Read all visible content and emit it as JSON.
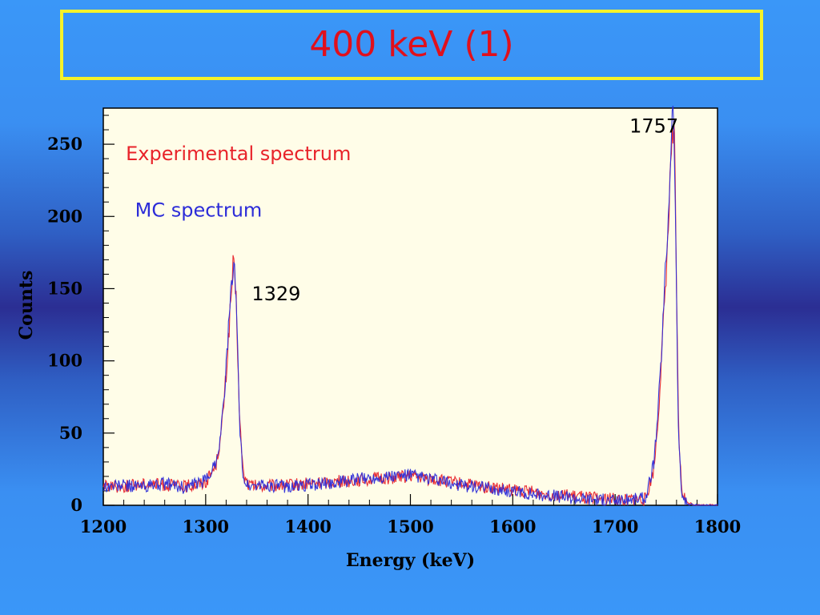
{
  "slide": {
    "title": "400 keV (1)",
    "colors": {
      "title": "#e0101c",
      "title_border": "#f5f22a",
      "plot_bg": "#fffde8"
    }
  },
  "chart_data": {
    "type": "line",
    "xlabel": "Energy (keV)",
    "ylabel": "Counts",
    "xlim": [
      1200,
      1800
    ],
    "ylim": [
      0,
      275
    ],
    "xticks": [
      1200,
      1300,
      1400,
      1500,
      1600,
      1700,
      1800
    ],
    "yticks": [
      0,
      50,
      100,
      150,
      200,
      250
    ],
    "grid": false,
    "series": [
      {
        "name": "Experimental spectrum",
        "color": "#e8232a",
        "x": [
          1200,
          1220,
          1240,
          1260,
          1280,
          1300,
          1310,
          1315,
          1320,
          1324,
          1327,
          1330,
          1333,
          1337,
          1342,
          1350,
          1380,
          1420,
          1460,
          1500,
          1540,
          1580,
          1620,
          1660,
          1700,
          1730,
          1738,
          1742,
          1746,
          1749,
          1752,
          1754,
          1756,
          1758,
          1760,
          1762,
          1765,
          1770,
          1780,
          1800
        ],
        "y": [
          14,
          13,
          15,
          14,
          13,
          16,
          28,
          48,
          90,
          135,
          168,
          140,
          60,
          20,
          14,
          13,
          14,
          16,
          18,
          20,
          16,
          12,
          9,
          6,
          4,
          4,
          25,
          60,
          110,
          150,
          190,
          230,
          265,
          250,
          150,
          50,
          10,
          2,
          0,
          0
        ]
      },
      {
        "name": "MC spectrum",
        "color": "#2c2cd8",
        "x": [
          1200,
          1220,
          1240,
          1260,
          1280,
          1300,
          1310,
          1315,
          1320,
          1324,
          1327,
          1330,
          1333,
          1337,
          1342,
          1350,
          1380,
          1420,
          1460,
          1500,
          1540,
          1580,
          1620,
          1660,
          1700,
          1730,
          1738,
          1742,
          1746,
          1749,
          1752,
          1754,
          1756,
          1758,
          1760,
          1762,
          1765,
          1770,
          1780,
          1800
        ],
        "y": [
          13,
          14,
          13,
          15,
          12,
          17,
          30,
          50,
          95,
          140,
          165,
          150,
          55,
          18,
          13,
          14,
          13,
          15,
          19,
          21,
          15,
          11,
          8,
          5,
          3,
          5,
          30,
          65,
          115,
          160,
          200,
          240,
          280,
          245,
          140,
          45,
          8,
          1,
          0,
          0
        ]
      }
    ],
    "annotations": [
      {
        "text": "Experimental spectrum",
        "x": 1222,
        "y": 239,
        "color": "#e8232a"
      },
      {
        "text": "MC spectrum",
        "x": 1231,
        "y": 200,
        "color": "#2c2cd8"
      },
      {
        "text": "1329",
        "x": 1345,
        "y": 142,
        "color": "#000000"
      },
      {
        "text": "1757",
        "x": 1714,
        "y": 258,
        "color": "#000000"
      }
    ]
  }
}
